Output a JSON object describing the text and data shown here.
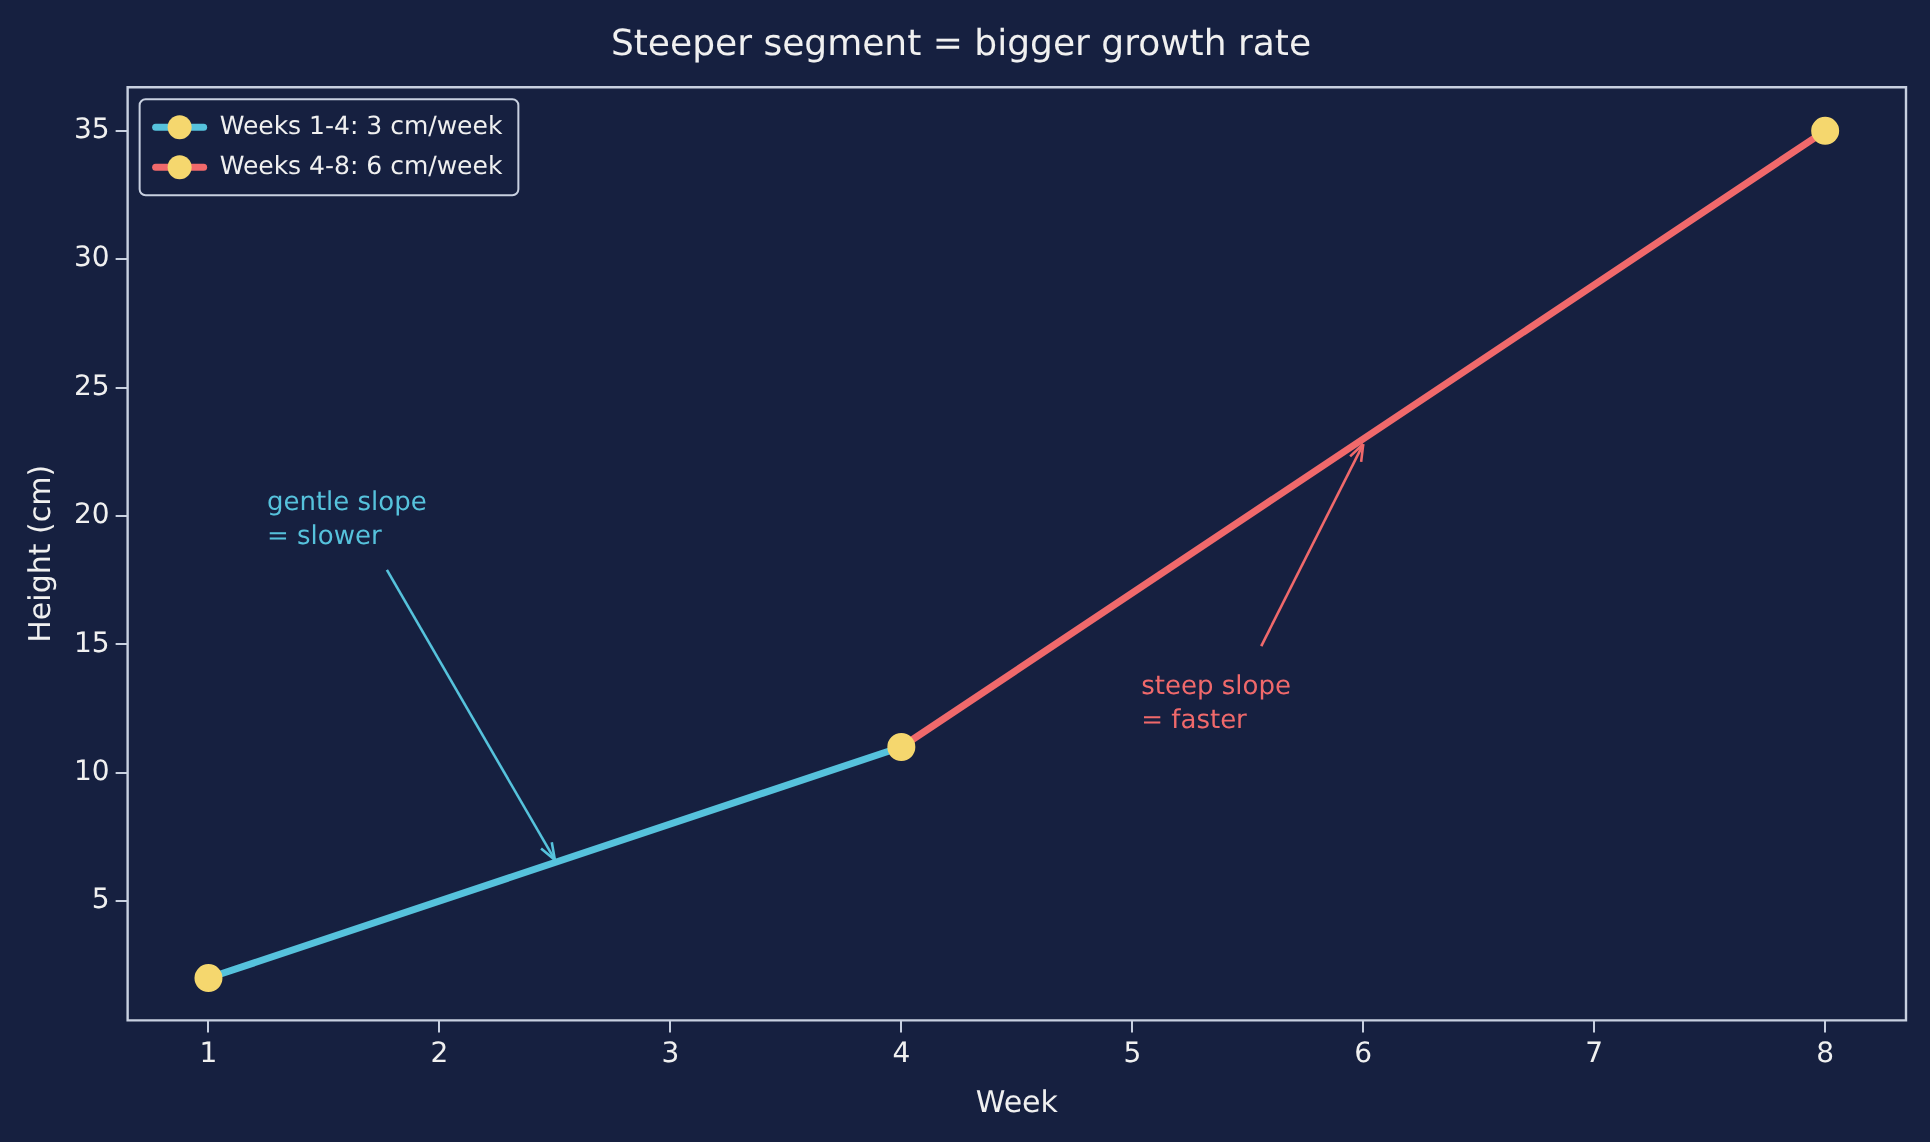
{
  "chart_data": {
    "type": "line",
    "title": "Steeper segment = bigger growth rate",
    "xlabel": "Week",
    "ylabel": "Height (cm)",
    "xlim": [
      0.65,
      8.35
    ],
    "xticks": [
      1,
      2,
      3,
      4,
      5,
      6,
      7,
      8
    ],
    "ylim": [
      0.35,
      36.7
    ],
    "yticks": [
      5,
      10,
      15,
      20,
      25,
      30,
      35
    ],
    "grid": false,
    "legend": "top left",
    "marker": "circle",
    "line_style": "solid",
    "series": [
      {
        "name": "Weeks 1-4: 3 cm/week",
        "color": "#56c2dc",
        "x": [
          1,
          4
        ],
        "values": [
          2,
          11
        ]
      },
      {
        "name": "Weeks 4-8: 6 cm/week",
        "color": "#f0696b",
        "x": [
          4,
          8
        ],
        "values": [
          11,
          35
        ]
      },
      {
        "type": "scatter",
        "color": "#f5d76e",
        "x": [
          1,
          4,
          8
        ],
        "values": [
          2,
          11,
          35
        ]
      }
    ],
    "annotations": [
      {
        "text": "gentle slope\n= slower",
        "x": 2.5,
        "y": 6.6
      },
      {
        "text": "steep slope\n= faster",
        "x": 6,
        "y": 22.8
      }
    ]
  }
}
